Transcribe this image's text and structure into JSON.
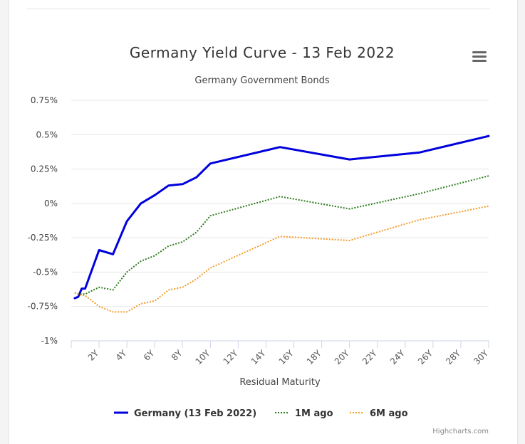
{
  "chart": {
    "title": "Germany Yield Curve - 13 Feb 2022",
    "subtitle": "Germany Government Bonds",
    "credit": "Highcharts.com",
    "menu_icon": "hamburger-menu-icon"
  },
  "chart_data": {
    "type": "line",
    "title": "Germany Yield Curve - 13 Feb 2022",
    "subtitle": "Germany Government Bonds",
    "xlabel": "Residual Maturity",
    "ylabel": "",
    "xlim": [
      0,
      30
    ],
    "ylim": [
      -1,
      0.75
    ],
    "yticks": [
      0.75,
      0.5,
      0.25,
      0,
      -0.25,
      -0.5,
      -0.75,
      -1
    ],
    "ytick_labels": [
      "0.75%",
      "0.5%",
      "0.25%",
      "0%",
      "-0.25%",
      "-0.5%",
      "-0.75%",
      "-1%"
    ],
    "xticks": [
      2,
      4,
      6,
      8,
      10,
      12,
      14,
      16,
      18,
      20,
      22,
      24,
      26,
      28,
      30
    ],
    "xtick_labels": [
      "2Y",
      "4Y",
      "6Y",
      "8Y",
      "10Y",
      "12Y",
      "14Y",
      "16Y",
      "18Y",
      "20Y",
      "22Y",
      "24Y",
      "26Y",
      "28Y",
      "30Y"
    ],
    "grid": "horizontal",
    "legend_position": "bottom",
    "series": [
      {
        "name": "Germany (13 Feb 2022)",
        "color": "#0000dd",
        "style": "solid",
        "x": [
          0.25,
          0.5,
          0.75,
          1,
          2,
          3,
          4,
          5,
          6,
          7,
          8,
          9,
          10,
          15,
          20,
          25,
          30
        ],
        "y": [
          -0.69,
          -0.68,
          -0.62,
          -0.62,
          -0.34,
          -0.37,
          -0.13,
          0.0,
          0.06,
          0.13,
          0.14,
          0.19,
          0.29,
          0.41,
          0.32,
          0.37,
          0.49
        ]
      },
      {
        "name": "1M ago",
        "color": "#2e7d1e",
        "style": "dotted",
        "x": [
          0.25,
          0.5,
          0.75,
          1,
          2,
          3,
          4,
          5,
          6,
          7,
          8,
          9,
          10,
          15,
          20,
          25,
          30
        ],
        "y": [
          -0.65,
          -0.66,
          -0.66,
          -0.66,
          -0.61,
          -0.63,
          -0.5,
          -0.42,
          -0.38,
          -0.31,
          -0.28,
          -0.21,
          -0.09,
          0.05,
          -0.04,
          0.07,
          0.2
        ]
      },
      {
        "name": "6M ago",
        "color": "#f29c2b",
        "style": "dotted",
        "x": [
          0.25,
          0.5,
          0.75,
          1,
          2,
          3,
          4,
          5,
          6,
          7,
          8,
          9,
          10,
          15,
          20,
          25,
          30
        ],
        "y": [
          -0.65,
          -0.66,
          -0.67,
          -0.67,
          -0.75,
          -0.79,
          -0.79,
          -0.73,
          -0.71,
          -0.63,
          -0.61,
          -0.55,
          -0.47,
          -0.24,
          -0.27,
          -0.12,
          -0.02
        ]
      }
    ]
  }
}
